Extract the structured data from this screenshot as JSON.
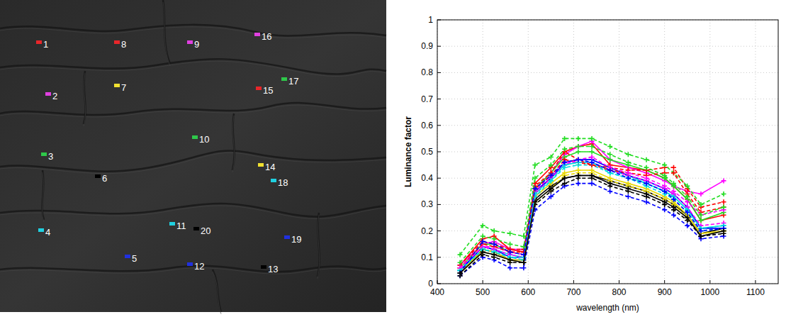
{
  "chart_data": [
    {
      "type": "image",
      "tick_labels": false,
      "xlim": [
        0,
        545
      ],
      "ylim": [
        0,
        440
      ],
      "points": [
        {
          "label": "1",
          "color": "#e8262a",
          "x": 55,
          "y": 60
        },
        {
          "label": "2",
          "color": "#e040e0",
          "x": 68,
          "y": 133
        },
        {
          "label": "3",
          "color": "#2ec84a",
          "x": 62,
          "y": 218
        },
        {
          "label": "4",
          "color": "#20d0e0",
          "x": 58,
          "y": 325
        },
        {
          "label": "5",
          "color": "#2030e0",
          "x": 180,
          "y": 362
        },
        {
          "label": "6",
          "color": "#000000",
          "x": 138,
          "y": 249
        },
        {
          "label": "7",
          "color": "#f0e030",
          "x": 165,
          "y": 121
        },
        {
          "label": "8",
          "color": "#e8262a",
          "x": 165,
          "y": 60
        },
        {
          "label": "9",
          "color": "#e040e0",
          "x": 268,
          "y": 60
        },
        {
          "label": "10",
          "color": "#2ec84a",
          "x": 275,
          "y": 194
        },
        {
          "label": "11",
          "color": "#20d0e0",
          "x": 243,
          "y": 316
        },
        {
          "label": "12",
          "color": "#2030e0",
          "x": 268,
          "y": 373
        },
        {
          "label": "13",
          "color": "#000000",
          "x": 372,
          "y": 377
        },
        {
          "label": "14",
          "color": "#f0e030",
          "x": 368,
          "y": 233
        },
        {
          "label": "15",
          "color": "#e8262a",
          "x": 365,
          "y": 125
        },
        {
          "label": "16",
          "color": "#e040e0",
          "x": 363,
          "y": 49
        },
        {
          "label": "17",
          "color": "#2ec84a",
          "x": 401,
          "y": 112
        },
        {
          "label": "18",
          "color": "#20d0e0",
          "x": 386,
          "y": 255
        },
        {
          "label": "19",
          "color": "#2030e0",
          "x": 405,
          "y": 335
        },
        {
          "label": "20",
          "color": "#000000",
          "x": 277,
          "y": 323
        }
      ]
    },
    {
      "type": "line",
      "grid": true,
      "x_label": "wavelength (nm)",
      "y_label": "Luminance factor",
      "xlim": [
        400,
        1150
      ],
      "xticks": [
        400,
        500,
        600,
        700,
        800,
        900,
        1000,
        1100
      ],
      "ylim": [
        0,
        1
      ],
      "yticks": [
        0,
        0.1,
        0.2,
        0.3,
        0.4,
        0.5,
        0.6,
        0.7,
        0.8,
        0.9,
        1
      ],
      "x": [
        450,
        500,
        525,
        560,
        590,
        615,
        650,
        680,
        710,
        740,
        780,
        820,
        860,
        900,
        920,
        950,
        980,
        1030
      ],
      "series": [
        {
          "color": "#ff0000",
          "line_style": "solid",
          "marker": "plus",
          "values": [
            0.07,
            0.17,
            0.18,
            0.13,
            0.12,
            0.38,
            0.44,
            0.5,
            0.52,
            0.53,
            0.45,
            0.44,
            0.43,
            0.4,
            0.37,
            0.32,
            0.24,
            0.26
          ]
        },
        {
          "color": "#ff00ff",
          "line_style": "solid",
          "marker": "plus",
          "values": [
            0.07,
            0.15,
            0.16,
            0.13,
            0.13,
            0.36,
            0.42,
            0.49,
            0.52,
            0.54,
            0.47,
            0.44,
            0.42,
            0.39,
            0.37,
            0.35,
            0.34,
            0.39
          ]
        },
        {
          "color": "#22dd22",
          "line_style": "solid",
          "marker": "plus",
          "values": [
            0.06,
            0.15,
            0.15,
            0.12,
            0.11,
            0.36,
            0.42,
            0.48,
            0.5,
            0.5,
            0.47,
            0.45,
            0.43,
            0.4,
            0.37,
            0.32,
            0.24,
            0.27
          ]
        },
        {
          "color": "#00dddd",
          "line_style": "solid",
          "marker": "plus",
          "values": [
            0.05,
            0.14,
            0.13,
            0.11,
            0.1,
            0.34,
            0.4,
            0.45,
            0.46,
            0.46,
            0.43,
            0.41,
            0.38,
            0.35,
            0.33,
            0.28,
            0.21,
            0.22
          ]
        },
        {
          "color": "#0000ff",
          "line_style": "solid",
          "marker": "plus",
          "values": [
            0.05,
            0.14,
            0.13,
            0.1,
            0.1,
            0.35,
            0.4,
            0.46,
            0.47,
            0.47,
            0.44,
            0.41,
            0.39,
            0.36,
            0.34,
            0.29,
            0.21,
            0.21
          ]
        },
        {
          "color": "#000000",
          "line_style": "solid",
          "marker": "plus",
          "values": [
            0.04,
            0.13,
            0.12,
            0.09,
            0.09,
            0.32,
            0.37,
            0.4,
            0.41,
            0.41,
            0.39,
            0.37,
            0.35,
            0.32,
            0.3,
            0.26,
            0.19,
            0.21
          ]
        },
        {
          "color": "#e8d800",
          "line_style": "solid",
          "marker": "plus",
          "values": [
            0.04,
            0.13,
            0.12,
            0.09,
            0.09,
            0.33,
            0.38,
            0.42,
            0.43,
            0.43,
            0.4,
            0.38,
            0.36,
            0.33,
            0.31,
            0.26,
            0.19,
            0.2
          ]
        },
        {
          "color": "#ff0000",
          "line_style": "dashed",
          "marker": "plus",
          "values": [
            0.07,
            0.16,
            0.15,
            0.13,
            0.13,
            0.37,
            0.42,
            0.5,
            0.47,
            0.45,
            0.44,
            0.43,
            0.43,
            0.44,
            0.44,
            0.36,
            0.29,
            0.31
          ]
        },
        {
          "color": "#ff00ff",
          "line_style": "dashed",
          "marker": "plus",
          "values": [
            0.06,
            0.14,
            0.14,
            0.12,
            0.11,
            0.35,
            0.41,
            0.46,
            0.46,
            0.46,
            0.43,
            0.41,
            0.39,
            0.36,
            0.34,
            0.29,
            0.22,
            0.23
          ]
        },
        {
          "color": "#22dd22",
          "line_style": "dashed",
          "marker": "plus",
          "values": [
            0.11,
            0.22,
            0.2,
            0.19,
            0.18,
            0.45,
            0.48,
            0.55,
            0.55,
            0.55,
            0.52,
            0.49,
            0.47,
            0.45,
            0.42,
            0.37,
            0.3,
            0.34
          ]
        },
        {
          "color": "#00dddd",
          "line_style": "dashed",
          "marker": "plus",
          "values": [
            0.05,
            0.13,
            0.12,
            0.1,
            0.09,
            0.33,
            0.39,
            0.44,
            0.45,
            0.45,
            0.42,
            0.4,
            0.37,
            0.34,
            0.32,
            0.27,
            0.2,
            0.21
          ]
        },
        {
          "color": "#0000ff",
          "line_style": "dashed",
          "marker": "plus",
          "values": [
            0.03,
            0.1,
            0.09,
            0.06,
            0.06,
            0.28,
            0.33,
            0.37,
            0.38,
            0.38,
            0.35,
            0.33,
            0.31,
            0.28,
            0.26,
            0.22,
            0.17,
            0.18
          ]
        },
        {
          "color": "#000000",
          "line_style": "dashed",
          "marker": "plus",
          "values": [
            0.03,
            0.11,
            0.1,
            0.08,
            0.08,
            0.3,
            0.35,
            0.38,
            0.4,
            0.4,
            0.37,
            0.35,
            0.33,
            0.3,
            0.28,
            0.24,
            0.18,
            0.19
          ]
        },
        {
          "color": "#e8d800",
          "line_style": "dashed",
          "marker": "plus",
          "values": [
            0.04,
            0.12,
            0.11,
            0.09,
            0.08,
            0.31,
            0.36,
            0.41,
            0.42,
            0.42,
            0.39,
            0.37,
            0.35,
            0.32,
            0.3,
            0.25,
            0.19,
            0.2
          ]
        },
        {
          "color": "#ff0000",
          "line_style": "dashed",
          "marker": "plus",
          "values": [
            0.06,
            0.15,
            0.14,
            0.12,
            0.12,
            0.36,
            0.41,
            0.47,
            0.46,
            0.45,
            0.43,
            0.42,
            0.41,
            0.42,
            0.42,
            0.34,
            0.27,
            0.29
          ]
        },
        {
          "color": "#ff00ff",
          "line_style": "dashed",
          "marker": "plus",
          "values": [
            0.06,
            0.14,
            0.13,
            0.11,
            0.1,
            0.34,
            0.4,
            0.45,
            0.47,
            0.48,
            0.44,
            0.42,
            0.4,
            0.37,
            0.35,
            0.31,
            0.26,
            0.28
          ]
        },
        {
          "color": "#22dd22",
          "line_style": "dashed",
          "marker": "plus",
          "values": [
            0.08,
            0.18,
            0.17,
            0.15,
            0.14,
            0.4,
            0.45,
            0.51,
            0.52,
            0.52,
            0.49,
            0.46,
            0.44,
            0.41,
            0.38,
            0.33,
            0.26,
            0.29
          ]
        },
        {
          "color": "#00dddd",
          "line_style": "dashed",
          "marker": "plus",
          "values": [
            0.05,
            0.13,
            0.12,
            0.1,
            0.1,
            0.34,
            0.39,
            0.45,
            0.46,
            0.46,
            0.42,
            0.4,
            0.38,
            0.35,
            0.33,
            0.28,
            0.21,
            0.22
          ]
        },
        {
          "color": "#0000ff",
          "line_style": "dashed",
          "marker": "plus",
          "values": [
            0.04,
            0.16,
            0.15,
            0.12,
            0.11,
            0.36,
            0.41,
            0.46,
            0.47,
            0.46,
            0.43,
            0.4,
            0.38,
            0.35,
            0.32,
            0.27,
            0.2,
            0.21
          ]
        },
        {
          "color": "#000000",
          "line_style": "solid",
          "marker": "plus",
          "values": [
            0.04,
            0.12,
            0.11,
            0.09,
            0.08,
            0.31,
            0.36,
            0.4,
            0.41,
            0.41,
            0.38,
            0.36,
            0.34,
            0.31,
            0.29,
            0.25,
            0.18,
            0.2
          ]
        }
      ]
    }
  ]
}
